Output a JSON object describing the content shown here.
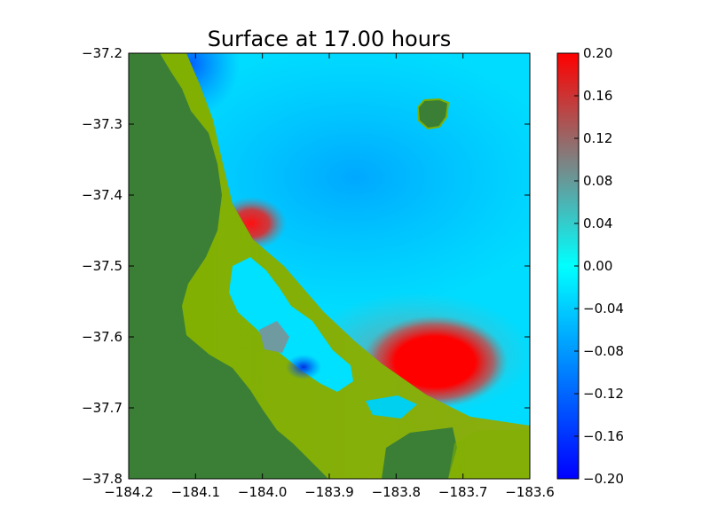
{
  "chart_data": {
    "type": "heatmap",
    "title": "Surface at 17.00 hours",
    "xlabel": "",
    "ylabel": "",
    "xlim": [
      -184.2,
      -183.6
    ],
    "ylim": [
      -37.8,
      -37.2
    ],
    "x_ticks": [
      -184.2,
      -184.1,
      -184.0,
      -183.9,
      -183.8,
      -183.7,
      -183.6
    ],
    "y_ticks": [
      -37.8,
      -37.7,
      -37.6,
      -37.5,
      -37.4,
      -37.3,
      -37.2
    ],
    "x_tick_labels": [
      "−184.2",
      "−184.1",
      "−184.0",
      "−183.9",
      "−183.8",
      "−183.7",
      "−183.6"
    ],
    "y_tick_labels": [
      "−37.8",
      "−37.7",
      "−37.6",
      "−37.5",
      "−37.4",
      "−37.3",
      "−37.2"
    ],
    "colorbar": {
      "range": [
        -0.2,
        0.2
      ],
      "ticks": [
        0.2,
        0.16,
        0.12,
        0.08,
        0.04,
        0.0,
        -0.04,
        -0.08,
        -0.12,
        -0.16,
        -0.2
      ],
      "tick_labels": [
        "0.20",
        "0.16",
        "0.12",
        "0.08",
        "0.04",
        "0.00",
        "−0.04",
        "−0.08",
        "−0.12",
        "−0.16",
        "−0.20"
      ],
      "colors": [
        "#0000ff",
        "#00ffff",
        "#808080",
        "#ff0000"
      ]
    },
    "field_features": [
      {
        "kind": "high",
        "lon": -183.74,
        "lat": -37.655,
        "value": 0.2
      },
      {
        "kind": "high",
        "lon": -184.02,
        "lat": -37.465,
        "value": 0.18
      },
      {
        "kind": "low",
        "lon": -184.08,
        "lat": -37.21,
        "value": -0.1
      },
      {
        "kind": "low",
        "lon": -183.93,
        "lat": -37.665,
        "value": -0.12
      }
    ],
    "grid": false,
    "legend": "none",
    "colors": {
      "land_dark": "#3a7f35",
      "land_light": "#7fb000",
      "water_base": "#00d8ff"
    }
  }
}
